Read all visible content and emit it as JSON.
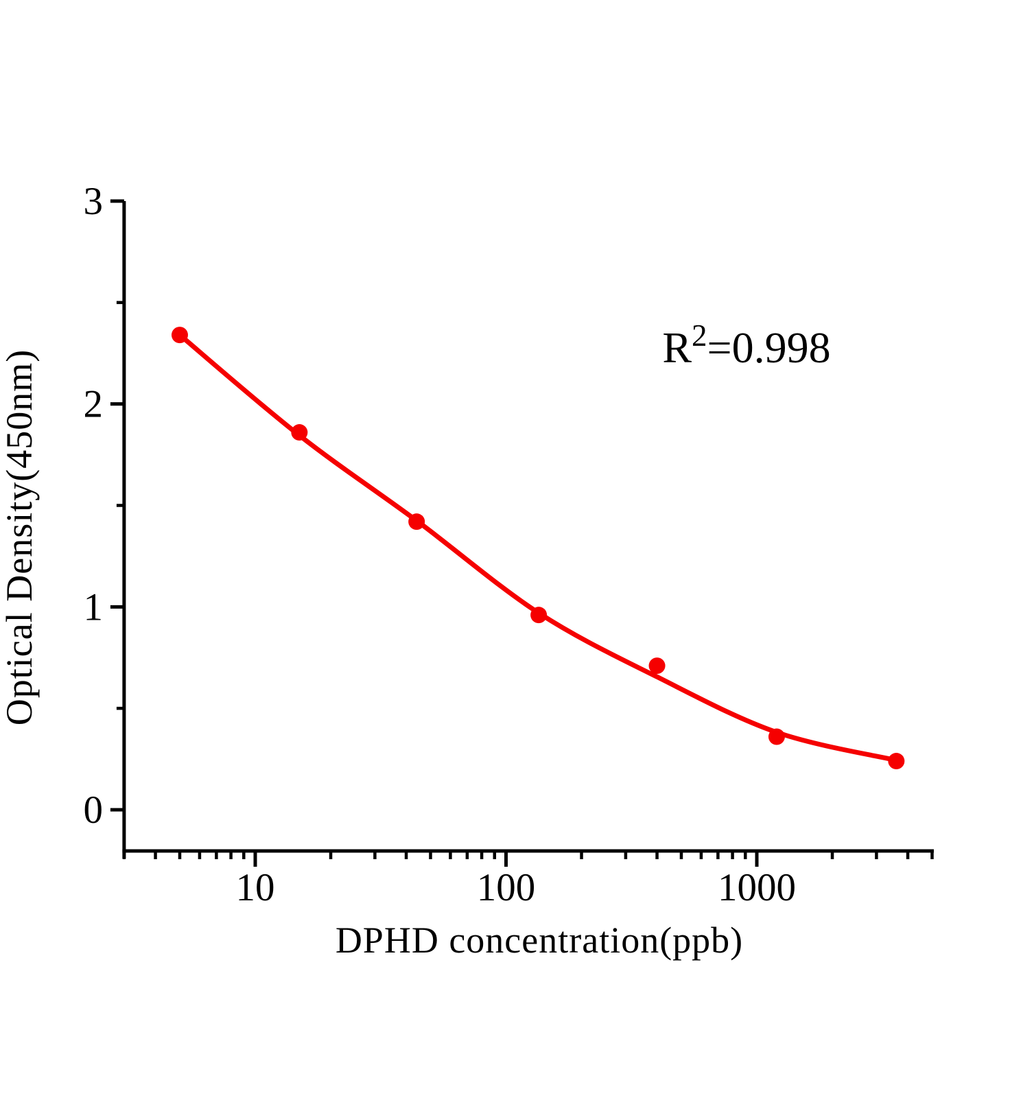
{
  "figure": {
    "background": "#ffffff",
    "axis_color": "#000000",
    "annotation": {
      "base": "R",
      "sup": "2",
      "rest": "=0.998"
    }
  },
  "chart_data": {
    "type": "scatter",
    "title": "",
    "xlabel": "DPHD concentration(ppb)",
    "ylabel": "Optical Density(450nm)",
    "x_scale": "log",
    "xlim": [
      3,
      5000
    ],
    "ylim": [
      0,
      3
    ],
    "grid": false,
    "legend": "none",
    "annotation": "R2=0.998",
    "r_squared": 0.998,
    "x_major_ticks": [
      10,
      100,
      1000
    ],
    "x_major_tick_labels": [
      "10",
      "100",
      "1000"
    ],
    "x_minor_ticks": [
      3,
      4,
      5,
      6,
      7,
      8,
      9,
      20,
      30,
      40,
      50,
      60,
      70,
      80,
      90,
      200,
      300,
      400,
      500,
      600,
      700,
      800,
      900,
      2000,
      3000,
      4000,
      5000
    ],
    "y_major_ticks": [
      0,
      1,
      2,
      3
    ],
    "y_major_tick_labels": [
      "0",
      "1",
      "2",
      "3"
    ],
    "y_minor_ticks": [
      0.5,
      1.5,
      2.5
    ],
    "series": [
      {
        "name": "standard-points",
        "type": "scatter",
        "color": "#f50000",
        "x": [
          5,
          15,
          44,
          135,
          400,
          1200,
          3600
        ],
        "y": [
          2.34,
          1.86,
          1.42,
          0.96,
          0.71,
          0.36,
          0.24
        ]
      },
      {
        "name": "fit-curve",
        "type": "line",
        "color": "#f50000",
        "x": [
          5,
          15,
          44,
          135,
          400,
          1200,
          3600
        ],
        "y": [
          2.34,
          1.845,
          1.425,
          0.97,
          0.655,
          0.382,
          0.244
        ]
      }
    ]
  }
}
